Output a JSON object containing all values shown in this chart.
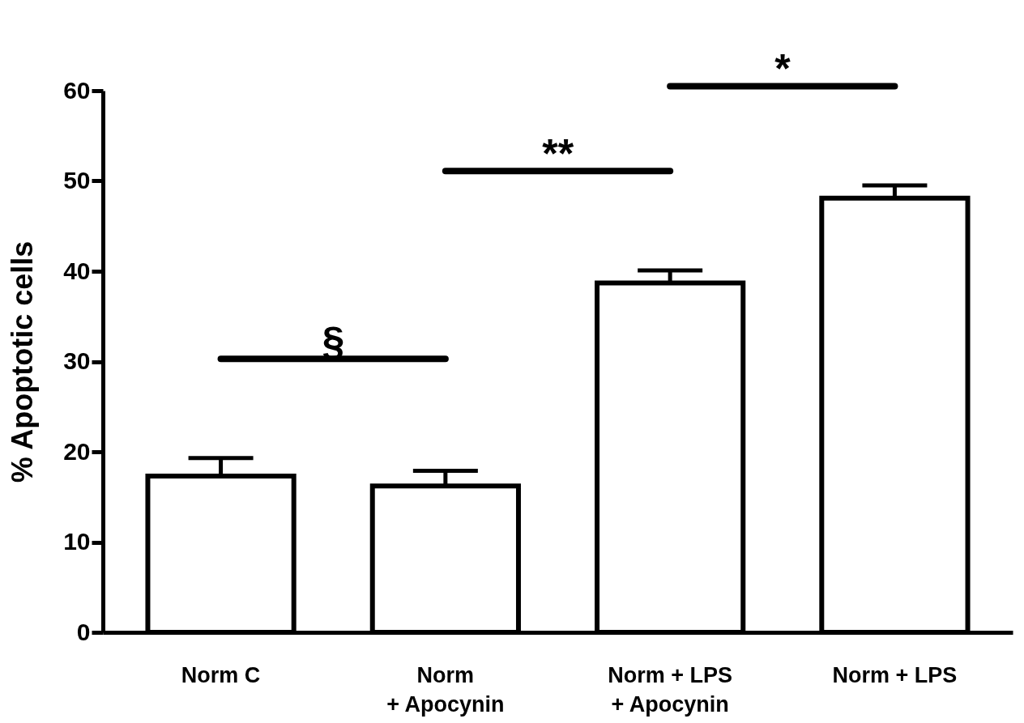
{
  "chart_data": {
    "type": "bar",
    "ylabel": "% Apoptotic cells",
    "categories": [
      "Norm C",
      "Norm\n+ Apocynin",
      "Norm + LPS\n+ Apocynin",
      "Norm + LPS"
    ],
    "values": [
      17.3,
      16.2,
      38.7,
      48.1
    ],
    "errors": [
      [
        17.3,
        19.3
      ],
      [
        16.2,
        17.9
      ],
      [
        38.7,
        40.1
      ],
      [
        48.1,
        49.5
      ]
    ],
    "colors": [
      "#ffffff",
      "#ffffff",
      "#ffffff",
      "#ffffff"
    ],
    "ylim": [
      0,
      60
    ],
    "yticks": [
      0,
      10,
      20,
      30,
      40,
      50,
      60
    ],
    "annotations": [
      "§",
      "**",
      "*"
    ],
    "grid": false
  }
}
